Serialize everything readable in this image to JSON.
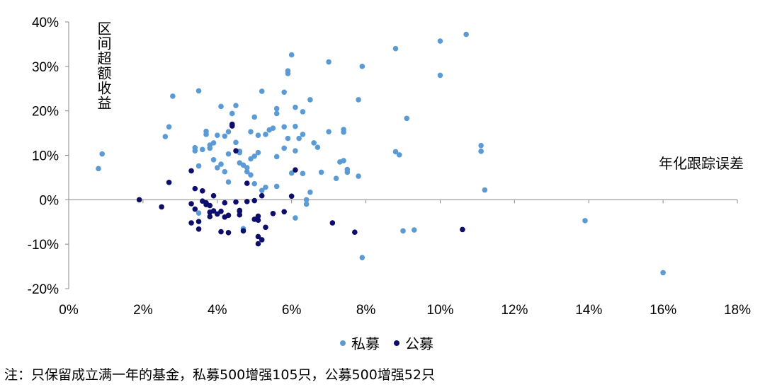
{
  "chart_data": {
    "type": "scatter",
    "xlabel": "年化跟踪误差",
    "ylabel": "区间超额收益",
    "xlim": [
      0,
      18
    ],
    "ylim": [
      -20,
      40
    ],
    "x_ticks": [
      0,
      2,
      4,
      6,
      8,
      10,
      12,
      14,
      16,
      18
    ],
    "y_ticks": [
      -20,
      -10,
      0,
      10,
      20,
      30,
      40
    ],
    "x_tick_labels": [
      "0%",
      "2%",
      "4%",
      "6%",
      "8%",
      "10%",
      "12%",
      "14%",
      "16%",
      "18%"
    ],
    "y_tick_labels": [
      "-20%",
      "-10%",
      "0%",
      "10%",
      "20%",
      "30%",
      "40%"
    ],
    "legend_position": "bottom",
    "note": "注：只保留成立满一年的基金，私募500增强105只，公募500增强52只",
    "series": [
      {
        "name": "私募",
        "color": "#5b9bd5",
        "points": [
          [
            0.8,
            7.0
          ],
          [
            0.9,
            10.3
          ],
          [
            2.6,
            14.2
          ],
          [
            2.7,
            16.4
          ],
          [
            2.8,
            23.3
          ],
          [
            3.4,
            11.7
          ],
          [
            3.4,
            11.0
          ],
          [
            3.5,
            24.5
          ],
          [
            3.5,
            -3.0
          ],
          [
            3.6,
            11.3
          ],
          [
            3.7,
            15.4
          ],
          [
            3.7,
            14.7
          ],
          [
            3.8,
            12.3
          ],
          [
            3.9,
            12.8
          ],
          [
            3.9,
            9.0
          ],
          [
            4.0,
            7.2
          ],
          [
            4.0,
            14.5
          ],
          [
            4.1,
            21.0
          ],
          [
            4.1,
            8.0
          ],
          [
            4.2,
            14.3
          ],
          [
            4.2,
            6.3
          ],
          [
            4.3,
            15.3
          ],
          [
            4.3,
            10.3
          ],
          [
            4.4,
            16.8
          ],
          [
            4.4,
            19.4
          ],
          [
            4.5,
            21.2
          ],
          [
            4.5,
            12.9
          ],
          [
            4.6,
            10.6
          ],
          [
            4.6,
            8.3
          ],
          [
            4.7,
            7.8
          ],
          [
            4.7,
            -6.5
          ],
          [
            4.8,
            7.2
          ],
          [
            4.8,
            6.3
          ],
          [
            4.9,
            15.3
          ],
          [
            4.9,
            5.6
          ],
          [
            5.0,
            18.6
          ],
          [
            5.0,
            9.8
          ],
          [
            5.0,
            3.6
          ],
          [
            5.1,
            14.5
          ],
          [
            5.1,
            10.6
          ],
          [
            5.2,
            24.4
          ],
          [
            5.2,
            2.1
          ],
          [
            5.3,
            14.7
          ],
          [
            5.4,
            15.7
          ],
          [
            5.5,
            16.1
          ],
          [
            5.6,
            19.4
          ],
          [
            5.6,
            20.5
          ],
          [
            5.6,
            9.7
          ],
          [
            5.6,
            3.0
          ],
          [
            5.8,
            24.2
          ],
          [
            5.8,
            16.4
          ],
          [
            5.8,
            11.6
          ],
          [
            5.9,
            29.0
          ],
          [
            5.9,
            28.4
          ],
          [
            5.9,
            13.8
          ],
          [
            6.0,
            32.6
          ],
          [
            6.1,
            20.8
          ],
          [
            6.1,
            16.5
          ],
          [
            6.1,
            11.0
          ],
          [
            6.2,
            13.8
          ],
          [
            6.3,
            19.8
          ],
          [
            6.3,
            14.7
          ],
          [
            6.3,
            5.9
          ],
          [
            6.4,
            0.0
          ],
          [
            6.4,
            -1.0
          ],
          [
            6.5,
            22.5
          ],
          [
            6.5,
            1.7
          ],
          [
            6.6,
            12.8
          ],
          [
            6.7,
            11.8
          ],
          [
            6.8,
            6.2
          ],
          [
            7.0,
            31.0
          ],
          [
            7.0,
            15.3
          ],
          [
            7.2,
            4.8
          ],
          [
            7.3,
            8.5
          ],
          [
            7.4,
            15.8
          ],
          [
            7.4,
            15.2
          ],
          [
            7.4,
            8.8
          ],
          [
            7.5,
            6.8
          ],
          [
            7.5,
            6.2
          ],
          [
            7.8,
            22.5
          ],
          [
            7.8,
            5.3
          ],
          [
            7.9,
            30.0
          ],
          [
            7.9,
            -13.0
          ],
          [
            8.8,
            34.0
          ],
          [
            8.8,
            10.8
          ],
          [
            8.9,
            10.1
          ],
          [
            9.0,
            -7.0
          ],
          [
            9.1,
            18.3
          ],
          [
            9.3,
            -6.8
          ],
          [
            10.0,
            35.7
          ],
          [
            10.0,
            28.0
          ],
          [
            10.7,
            37.2
          ],
          [
            11.1,
            12.2
          ],
          [
            11.1,
            10.9
          ],
          [
            11.2,
            2.2
          ],
          [
            13.9,
            -4.7
          ],
          [
            16.0,
            -16.4
          ],
          [
            3.5,
            7.6
          ],
          [
            4.9,
            9.2
          ],
          [
            6.1,
            -4.1
          ],
          [
            6.0,
            6.0
          ],
          [
            5.3,
            2.8
          ],
          [
            4.6,
            10.9
          ],
          [
            4.3,
            4.0
          ],
          [
            3.8,
            11.6
          ]
        ]
      },
      {
        "name": "公募",
        "color": "#0d0d6b",
        "points": [
          [
            1.9,
            0.0
          ],
          [
            2.5,
            -1.6
          ],
          [
            2.7,
            3.9
          ],
          [
            3.3,
            6.5
          ],
          [
            3.3,
            -0.9
          ],
          [
            3.4,
            -2.1
          ],
          [
            3.5,
            -4.9
          ],
          [
            3.5,
            -6.6
          ],
          [
            3.3,
            -5.2
          ],
          [
            3.4,
            2.5
          ],
          [
            3.6,
            -0.3
          ],
          [
            3.7,
            -1.1
          ],
          [
            3.7,
            -0.7
          ],
          [
            3.8,
            -1.3
          ],
          [
            3.8,
            -2.8
          ],
          [
            3.8,
            -3.8
          ],
          [
            3.9,
            0.9
          ],
          [
            3.9,
            -2.5
          ],
          [
            4.0,
            -3.2
          ],
          [
            4.1,
            -2.6
          ],
          [
            4.1,
            -7.2
          ],
          [
            4.2,
            -0.7
          ],
          [
            4.3,
            -3.5
          ],
          [
            4.3,
            -7.4
          ],
          [
            4.4,
            17.0
          ],
          [
            4.4,
            16.6
          ],
          [
            4.5,
            11.0
          ],
          [
            4.5,
            -0.5
          ],
          [
            4.6,
            -2.4
          ],
          [
            4.6,
            -2.6
          ],
          [
            4.6,
            -3.4
          ],
          [
            4.7,
            -7.0
          ],
          [
            4.8,
            3.7
          ],
          [
            4.8,
            -0.4
          ],
          [
            5.0,
            -0.2
          ],
          [
            5.0,
            -4.4
          ],
          [
            5.1,
            -4.6
          ],
          [
            5.1,
            -8.3
          ],
          [
            5.1,
            -9.9
          ],
          [
            5.2,
            0.9
          ],
          [
            5.2,
            -9.0
          ],
          [
            5.3,
            -6.2
          ],
          [
            5.5,
            -3.1
          ],
          [
            5.8,
            -2.7
          ],
          [
            6.0,
            0.8
          ],
          [
            6.1,
            6.7
          ],
          [
            7.1,
            -5.2
          ],
          [
            7.7,
            -7.3
          ],
          [
            10.6,
            -6.7
          ],
          [
            3.6,
            2.0
          ],
          [
            4.2,
            -3.9
          ],
          [
            5.1,
            -3.7
          ]
        ]
      }
    ]
  }
}
